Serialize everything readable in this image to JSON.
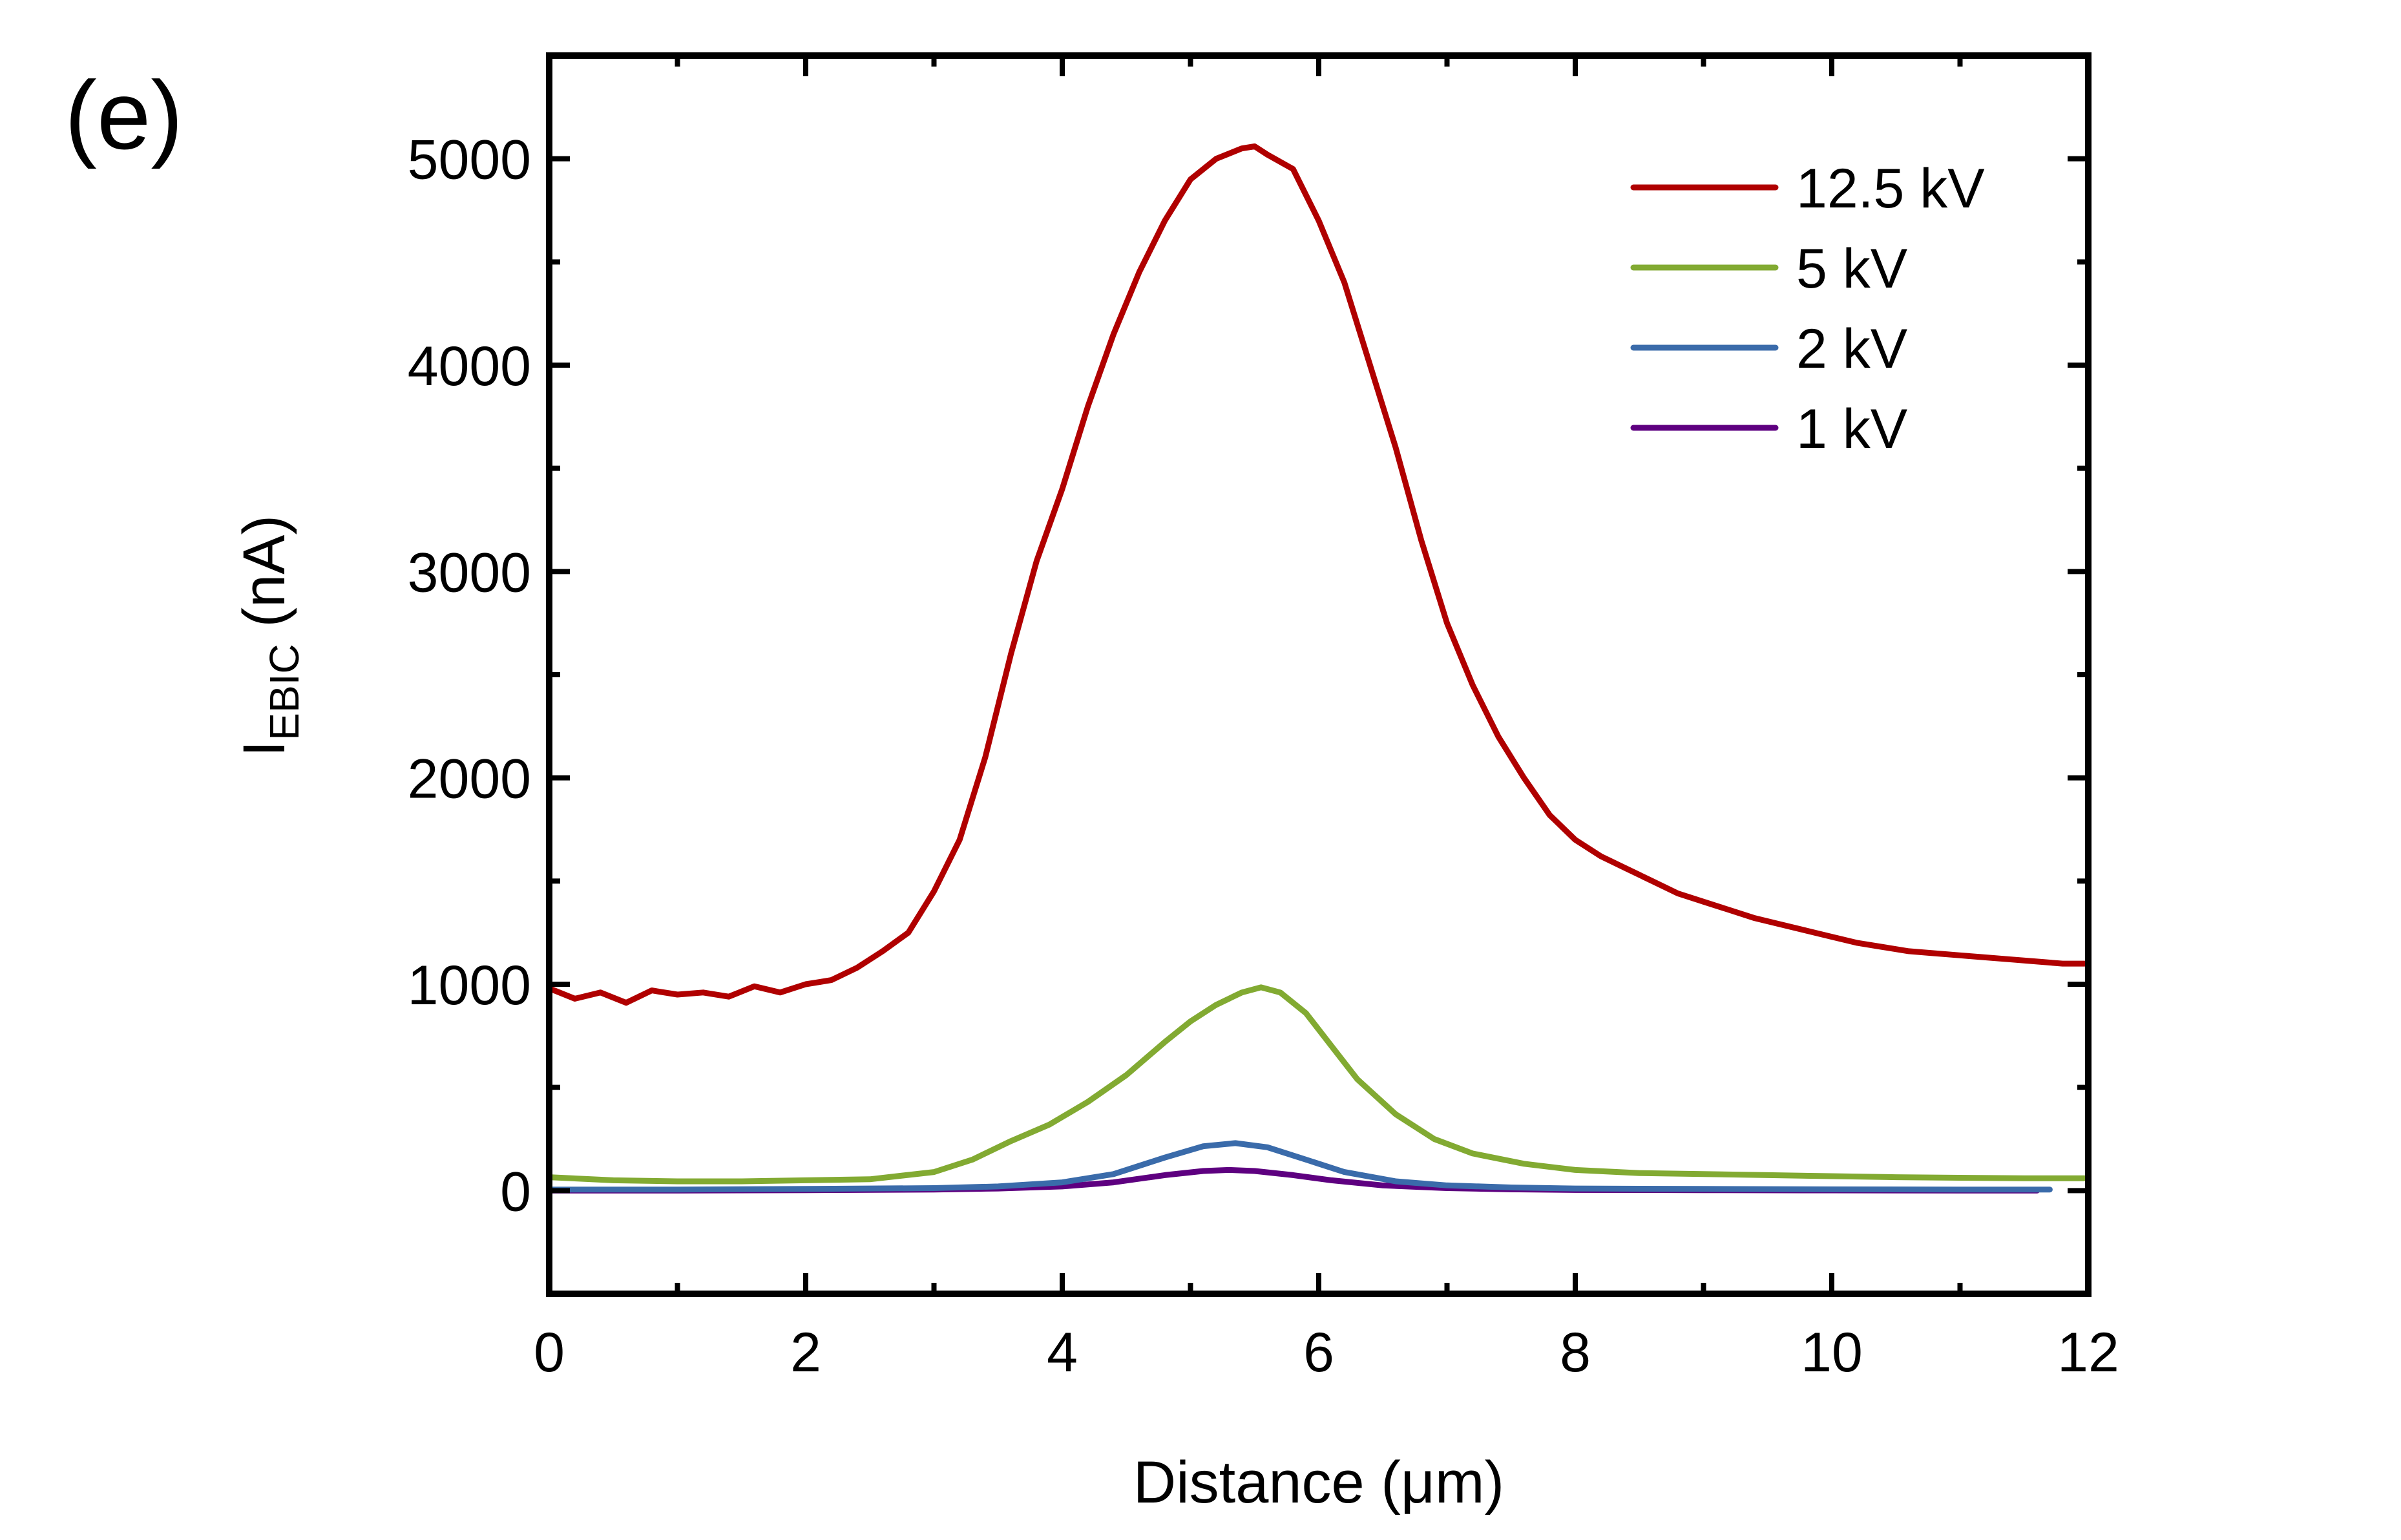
{
  "panel_label": "(e)",
  "chart_data": {
    "type": "line",
    "title": "",
    "xlabel": "Distance (μm)",
    "ylabel_main": "I",
    "ylabel_sub": "EBIC",
    "ylabel_unit": " (nA)",
    "xlim": [
      0,
      12
    ],
    "ylim": [
      -500,
      5500
    ],
    "x_major_ticks": [
      0,
      2,
      4,
      6,
      8,
      10,
      12
    ],
    "x_minor_ticks": [
      1,
      3,
      5,
      7,
      9,
      11
    ],
    "x_tick_labels": [
      "0",
      "2",
      "4",
      "6",
      "8",
      "10",
      "12"
    ],
    "y_major_ticks": [
      0,
      1000,
      2000,
      3000,
      4000,
      5000
    ],
    "y_minor_ticks": [
      -500,
      500,
      1500,
      2500,
      3500,
      4500,
      5500
    ],
    "y_tick_labels": [
      "0",
      "1000",
      "2000",
      "3000",
      "4000",
      "5000"
    ],
    "grid": false,
    "legend_position": "top-right",
    "series": [
      {
        "name": "12.5 kV",
        "color": "#B00000",
        "x": [
          0,
          0.2,
          0.4,
          0.6,
          0.8,
          1.0,
          1.2,
          1.4,
          1.6,
          1.8,
          2.0,
          2.2,
          2.4,
          2.6,
          2.8,
          3.0,
          3.2,
          3.4,
          3.6,
          3.8,
          4.0,
          4.2,
          4.4,
          4.6,
          4.8,
          5.0,
          5.2,
          5.4,
          5.5,
          5.6,
          5.8,
          6.0,
          6.2,
          6.4,
          6.6,
          6.8,
          7.0,
          7.2,
          7.4,
          7.6,
          7.8,
          8.0,
          8.2,
          8.4,
          8.6,
          8.8,
          9.0,
          9.2,
          9.4,
          9.6,
          9.8,
          10.0,
          10.2,
          10.4,
          10.6,
          10.8,
          11.0,
          11.2,
          11.4,
          11.6,
          11.8,
          12.0
        ],
        "y": [
          980,
          930,
          960,
          910,
          970,
          950,
          960,
          940,
          990,
          960,
          1000,
          1020,
          1080,
          1160,
          1250,
          1450,
          1700,
          2100,
          2600,
          3050,
          3400,
          3800,
          4150,
          4450,
          4700,
          4900,
          5000,
          5050,
          5060,
          5020,
          4950,
          4700,
          4400,
          4000,
          3600,
          3150,
          2750,
          2450,
          2200,
          2000,
          1820,
          1700,
          1620,
          1560,
          1500,
          1440,
          1400,
          1360,
          1320,
          1290,
          1260,
          1230,
          1200,
          1180,
          1160,
          1150,
          1140,
          1130,
          1120,
          1110,
          1100,
          1100
        ]
      },
      {
        "name": "5 kV",
        "color": "#82AA32",
        "x": [
          0,
          0.5,
          1.0,
          1.5,
          2.0,
          2.5,
          3.0,
          3.3,
          3.6,
          3.9,
          4.2,
          4.5,
          4.8,
          5.0,
          5.2,
          5.4,
          5.55,
          5.7,
          5.9,
          6.1,
          6.3,
          6.6,
          6.9,
          7.2,
          7.6,
          8.0,
          8.5,
          9.0,
          9.5,
          10.0,
          10.5,
          11.0,
          11.5,
          12.0
        ],
        "y": [
          65,
          50,
          45,
          45,
          50,
          55,
          90,
          150,
          240,
          320,
          430,
          560,
          720,
          820,
          900,
          960,
          985,
          960,
          860,
          700,
          540,
          370,
          250,
          180,
          130,
          100,
          85,
          80,
          75,
          70,
          65,
          62,
          60,
          60
        ]
      },
      {
        "name": "2 kV",
        "color": "#3A6BAA",
        "x": [
          0,
          1.0,
          2.0,
          3.0,
          3.5,
          4.0,
          4.4,
          4.8,
          5.1,
          5.35,
          5.6,
          5.9,
          6.2,
          6.6,
          7.0,
          7.5,
          8.0,
          9.0,
          10.0,
          11.0,
          11.7
        ],
        "y": [
          5,
          5,
          8,
          12,
          20,
          40,
          80,
          160,
          215,
          230,
          210,
          150,
          90,
          45,
          25,
          15,
          10,
          8,
          6,
          5,
          5
        ]
      },
      {
        "name": "1 kV",
        "color": "#5E0080",
        "x": [
          0,
          1.0,
          2.0,
          3.0,
          3.5,
          4.0,
          4.4,
          4.8,
          5.1,
          5.3,
          5.5,
          5.8,
          6.1,
          6.5,
          7.0,
          7.5,
          8.0,
          9.0,
          10.0,
          11.0,
          11.6
        ],
        "y": [
          0,
          0,
          2,
          5,
          10,
          20,
          40,
          75,
          95,
          100,
          95,
          75,
          50,
          25,
          12,
          6,
          3,
          2,
          1,
          0,
          0
        ]
      }
    ]
  }
}
